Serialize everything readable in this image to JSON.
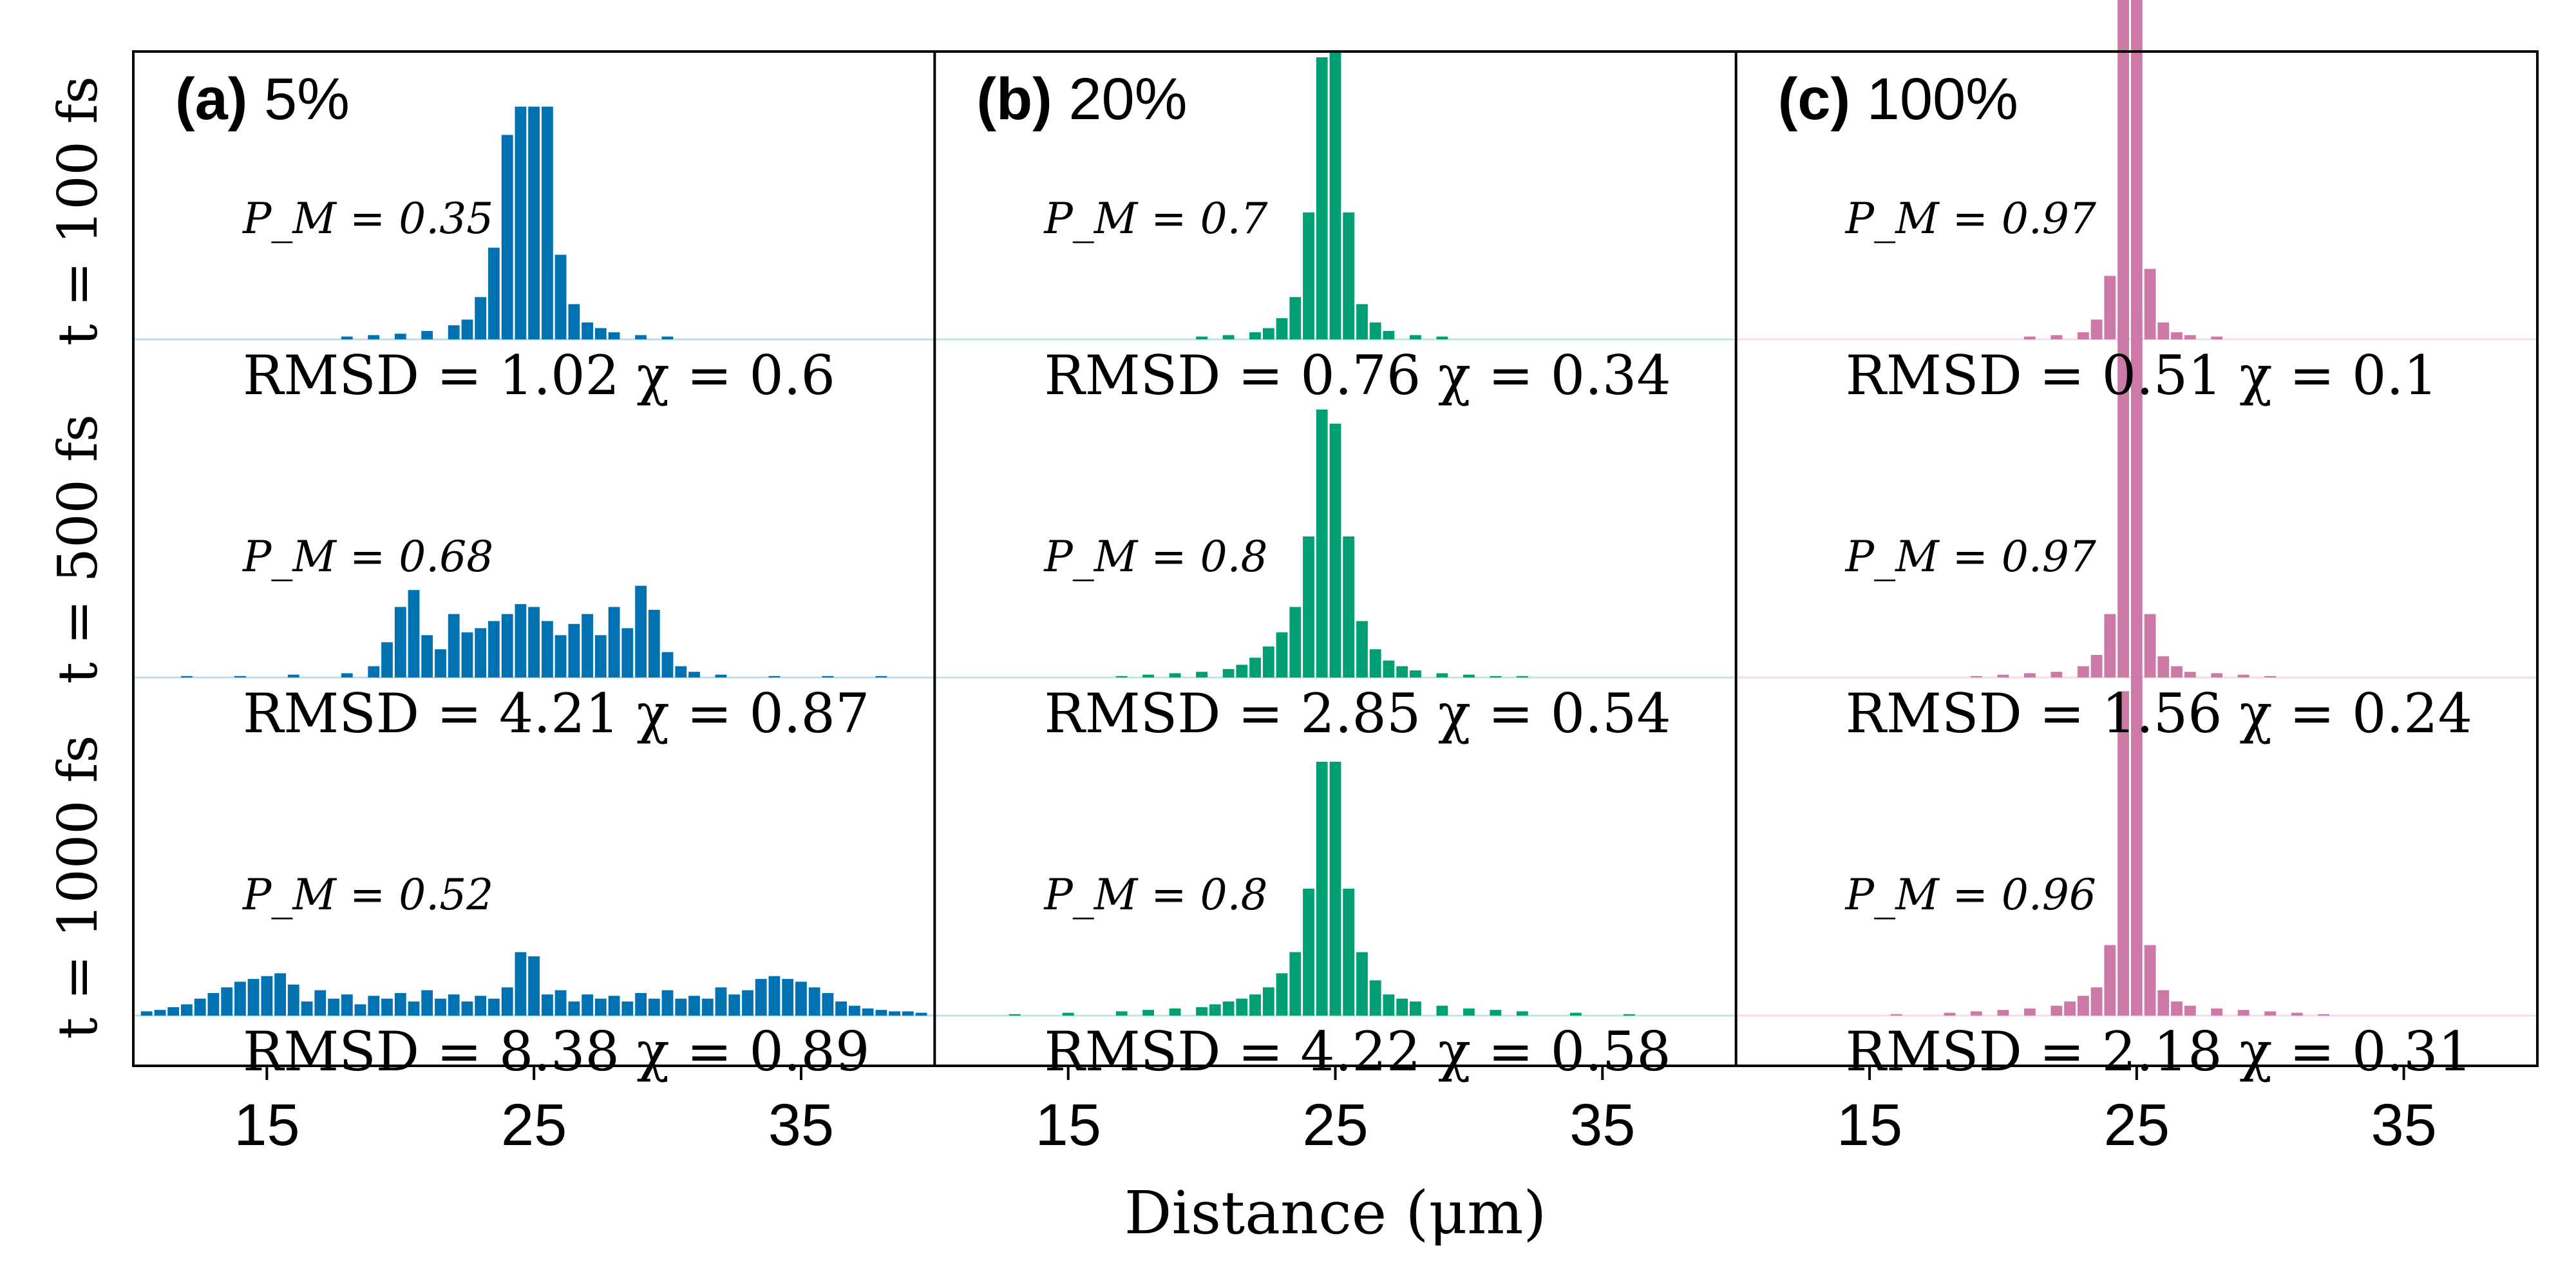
{
  "chart_data": {
    "type": "bar",
    "xlabel": "Distance (μm)",
    "xlim": [
      10,
      40
    ],
    "xticks": [
      15,
      25,
      35
    ],
    "x_bin_width": 0.5,
    "y_unit": "probability (normalized per row)",
    "columns": [
      {
        "letter": "(a)",
        "percent": "5%",
        "color": "#0072b2"
      },
      {
        "letter": "(b)",
        "percent": "20%",
        "color": "#009e73"
      },
      {
        "letter": "(c)",
        "percent": "100%",
        "color": "#cc79a7"
      }
    ],
    "rows": [
      {
        "label": "t = 100 fs",
        "ymax": 0.25
      },
      {
        "label": "t = 500 fs",
        "ymax": 0.25
      },
      {
        "label": "t = 1000 fs",
        "ymax": 0.25
      }
    ],
    "panels": [
      {
        "column": 0,
        "row": 0,
        "pm": "P_M = 0.35",
        "stats": "RMSD = 1.02   χ = 0.6",
        "bars": [
          [
            18,
            0.002
          ],
          [
            19,
            0.003
          ],
          [
            20,
            0.004
          ],
          [
            21,
            0.006
          ],
          [
            22,
            0.01
          ],
          [
            22.5,
            0.014
          ],
          [
            23,
            0.03
          ],
          [
            23.5,
            0.065
          ],
          [
            24,
            0.145
          ],
          [
            24.5,
            0.165
          ],
          [
            25,
            0.165
          ],
          [
            25.5,
            0.165
          ],
          [
            26,
            0.06
          ],
          [
            26.5,
            0.025
          ],
          [
            27,
            0.012
          ],
          [
            27.5,
            0.008
          ],
          [
            28,
            0.005
          ],
          [
            29,
            0.003
          ],
          [
            30,
            0.002
          ]
        ]
      },
      {
        "column": 1,
        "row": 0,
        "pm": "P_M = 0.7",
        "stats": "RMSD = 0.76   χ = 0.34",
        "bars": [
          [
            20,
            0.002
          ],
          [
            21,
            0.003
          ],
          [
            22,
            0.005
          ],
          [
            22.5,
            0.008
          ],
          [
            23,
            0.015
          ],
          [
            23.5,
            0.03
          ],
          [
            24,
            0.09
          ],
          [
            24.5,
            0.2
          ],
          [
            25,
            0.205
          ],
          [
            25.5,
            0.09
          ],
          [
            26,
            0.025
          ],
          [
            26.5,
            0.012
          ],
          [
            27,
            0.006
          ],
          [
            28,
            0.003
          ],
          [
            29,
            0.002
          ]
        ]
      },
      {
        "column": 2,
        "row": 0,
        "pm": "P_M = 0.97",
        "stats": "RMSD = 0.51   χ = 0.1",
        "bars": [
          [
            21,
            0.002
          ],
          [
            22,
            0.003
          ],
          [
            23,
            0.005
          ],
          [
            23.5,
            0.014
          ],
          [
            24,
            0.045
          ],
          [
            24.5,
            0.26
          ],
          [
            25,
            0.27
          ],
          [
            25.5,
            0.05
          ],
          [
            26,
            0.012
          ],
          [
            26.5,
            0.005
          ],
          [
            27,
            0.003
          ],
          [
            28,
            0.002
          ]
        ]
      },
      {
        "column": 0,
        "row": 1,
        "pm": "P_M = 0.68",
        "stats": "RMSD = 4.21   χ = 0.87",
        "bars": [
          [
            12,
            0.001
          ],
          [
            14,
            0.001
          ],
          [
            16,
            0.002
          ],
          [
            18,
            0.003
          ],
          [
            19,
            0.008
          ],
          [
            19.5,
            0.025
          ],
          [
            20,
            0.05
          ],
          [
            20.5,
            0.062
          ],
          [
            21,
            0.03
          ],
          [
            21.5,
            0.02
          ],
          [
            22,
            0.045
          ],
          [
            22.5,
            0.032
          ],
          [
            23,
            0.035
          ],
          [
            23.5,
            0.04
          ],
          [
            24,
            0.045
          ],
          [
            24.5,
            0.052
          ],
          [
            25,
            0.05
          ],
          [
            25.5,
            0.04
          ],
          [
            26,
            0.03
          ],
          [
            26.5,
            0.038
          ],
          [
            27,
            0.045
          ],
          [
            27.5,
            0.03
          ],
          [
            28,
            0.05
          ],
          [
            28.5,
            0.035
          ],
          [
            29,
            0.065
          ],
          [
            29.5,
            0.048
          ],
          [
            30,
            0.018
          ],
          [
            30.5,
            0.008
          ],
          [
            31,
            0.004
          ],
          [
            32,
            0.002
          ],
          [
            34,
            0.001
          ],
          [
            36,
            0.001
          ],
          [
            38,
            0.001
          ]
        ]
      },
      {
        "column": 1,
        "row": 1,
        "pm": "P_M = 0.8",
        "stats": "RMSD = 2.85   χ = 0.54",
        "bars": [
          [
            17,
            0.001
          ],
          [
            18,
            0.002
          ],
          [
            19,
            0.003
          ],
          [
            20,
            0.004
          ],
          [
            21,
            0.006
          ],
          [
            21.5,
            0.009
          ],
          [
            22,
            0.014
          ],
          [
            22.5,
            0.022
          ],
          [
            23,
            0.032
          ],
          [
            23.5,
            0.05
          ],
          [
            24,
            0.1
          ],
          [
            24.5,
            0.19
          ],
          [
            25,
            0.18
          ],
          [
            25.5,
            0.1
          ],
          [
            26,
            0.04
          ],
          [
            26.5,
            0.02
          ],
          [
            27,
            0.012
          ],
          [
            27.5,
            0.008
          ],
          [
            28,
            0.005
          ],
          [
            29,
            0.003
          ],
          [
            30,
            0.002
          ],
          [
            31,
            0.001
          ],
          [
            32,
            0.001
          ]
        ]
      },
      {
        "column": 2,
        "row": 1,
        "pm": "P_M = 0.97",
        "stats": "RMSD = 1.56   χ = 0.24",
        "bars": [
          [
            19,
            0.001
          ],
          [
            20,
            0.002
          ],
          [
            21,
            0.003
          ],
          [
            22,
            0.004
          ],
          [
            23,
            0.008
          ],
          [
            23.5,
            0.016
          ],
          [
            24,
            0.045
          ],
          [
            24.5,
            0.25
          ],
          [
            25,
            0.255
          ],
          [
            25.5,
            0.045
          ],
          [
            26,
            0.015
          ],
          [
            26.5,
            0.008
          ],
          [
            27,
            0.004
          ],
          [
            28,
            0.003
          ],
          [
            29,
            0.002
          ],
          [
            30,
            0.001
          ]
        ]
      },
      {
        "column": 0,
        "row": 2,
        "pm": "P_M = 0.52",
        "stats": "RMSD = 8.38   χ = 0.89",
        "bars": [
          [
            10.5,
            0.003
          ],
          [
            11,
            0.004
          ],
          [
            11.5,
            0.006
          ],
          [
            12,
            0.008
          ],
          [
            12.5,
            0.012
          ],
          [
            13,
            0.016
          ],
          [
            13.5,
            0.02
          ],
          [
            14,
            0.024
          ],
          [
            14.5,
            0.026
          ],
          [
            15,
            0.028
          ],
          [
            15.5,
            0.03
          ],
          [
            16,
            0.022
          ],
          [
            16.5,
            0.01
          ],
          [
            17,
            0.018
          ],
          [
            17.5,
            0.012
          ],
          [
            18,
            0.015
          ],
          [
            18.5,
            0.008
          ],
          [
            19,
            0.014
          ],
          [
            19.5,
            0.012
          ],
          [
            20,
            0.016
          ],
          [
            20.5,
            0.01
          ],
          [
            21,
            0.018
          ],
          [
            21.5,
            0.012
          ],
          [
            22,
            0.015
          ],
          [
            22.5,
            0.01
          ],
          [
            23,
            0.014
          ],
          [
            23.5,
            0.012
          ],
          [
            24,
            0.02
          ],
          [
            24.5,
            0.045
          ],
          [
            25,
            0.042
          ],
          [
            25.5,
            0.015
          ],
          [
            26,
            0.018
          ],
          [
            26.5,
            0.01
          ],
          [
            27,
            0.015
          ],
          [
            27.5,
            0.012
          ],
          [
            28,
            0.014
          ],
          [
            28.5,
            0.01
          ],
          [
            29,
            0.016
          ],
          [
            29.5,
            0.012
          ],
          [
            30,
            0.018
          ],
          [
            30.5,
            0.012
          ],
          [
            31,
            0.014
          ],
          [
            31.5,
            0.012
          ],
          [
            32,
            0.02
          ],
          [
            32.5,
            0.015
          ],
          [
            33,
            0.018
          ],
          [
            33.5,
            0.026
          ],
          [
            34,
            0.028
          ],
          [
            34.5,
            0.026
          ],
          [
            35,
            0.024
          ],
          [
            35.5,
            0.02
          ],
          [
            36,
            0.016
          ],
          [
            36.5,
            0.01
          ],
          [
            37,
            0.007
          ],
          [
            37.5,
            0.005
          ],
          [
            38,
            0.004
          ],
          [
            38.5,
            0.003
          ],
          [
            39,
            0.003
          ],
          [
            39.5,
            0.002
          ]
        ]
      },
      {
        "column": 1,
        "row": 2,
        "pm": "P_M = 0.8",
        "stats": "RMSD = 4.22   χ = 0.58",
        "bars": [
          [
            13,
            0.001
          ],
          [
            15,
            0.002
          ],
          [
            17,
            0.003
          ],
          [
            18,
            0.004
          ],
          [
            19,
            0.005
          ],
          [
            20,
            0.006
          ],
          [
            20.5,
            0.008
          ],
          [
            21,
            0.01
          ],
          [
            21.5,
            0.012
          ],
          [
            22,
            0.015
          ],
          [
            22.5,
            0.02
          ],
          [
            23,
            0.03
          ],
          [
            23.5,
            0.045
          ],
          [
            24,
            0.09
          ],
          [
            24.5,
            0.18
          ],
          [
            25,
            0.18
          ],
          [
            25.5,
            0.09
          ],
          [
            26,
            0.045
          ],
          [
            26.5,
            0.025
          ],
          [
            27,
            0.015
          ],
          [
            27.5,
            0.012
          ],
          [
            28,
            0.01
          ],
          [
            29,
            0.007
          ],
          [
            30,
            0.005
          ],
          [
            31,
            0.004
          ],
          [
            32,
            0.003
          ],
          [
            34,
            0.002
          ],
          [
            36,
            0.001
          ]
        ]
      },
      {
        "column": 2,
        "row": 2,
        "pm": "P_M = 0.96",
        "stats": "RMSD = 2.18   χ = 0.31",
        "bars": [
          [
            16,
            0.001
          ],
          [
            18,
            0.002
          ],
          [
            19,
            0.003
          ],
          [
            20,
            0.004
          ],
          [
            21,
            0.005
          ],
          [
            22,
            0.007
          ],
          [
            22.5,
            0.01
          ],
          [
            23,
            0.014
          ],
          [
            23.5,
            0.02
          ],
          [
            24,
            0.05
          ],
          [
            24.5,
            0.23
          ],
          [
            25,
            0.24
          ],
          [
            25.5,
            0.05
          ],
          [
            26,
            0.018
          ],
          [
            26.5,
            0.01
          ],
          [
            27,
            0.007
          ],
          [
            28,
            0.005
          ],
          [
            29,
            0.004
          ],
          [
            30,
            0.003
          ],
          [
            31,
            0.002
          ],
          [
            32,
            0.001
          ]
        ]
      }
    ]
  }
}
